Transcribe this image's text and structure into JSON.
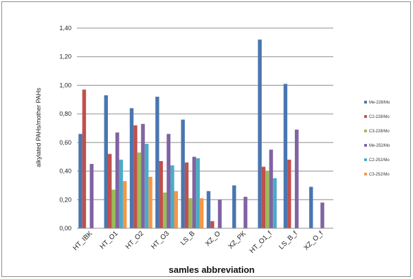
{
  "chart_data": {
    "type": "bar",
    "title": "",
    "xlabel": "samles abbreviation",
    "ylabel": "alkylated PAHs/mother PAHs",
    "ylim": [
      0,
      1.4
    ],
    "yticks": [
      "0,00",
      "0,20",
      "0,40",
      "0,60",
      "0,80",
      "1,00",
      "1,20",
      "1,40"
    ],
    "grid": true,
    "legend_position": "right",
    "categories": [
      "HT_IBK",
      "HT_O1",
      "HT_O2",
      "HT_O3",
      "LS_B",
      "XZ_O",
      "XZ_PK",
      "HT_O1_f",
      "LS_B_f",
      "XZ_O_f"
    ],
    "series": [
      {
        "name": "Me-228/Mo",
        "color": "#4a76b0",
        "values": [
          0.66,
          0.93,
          0.84,
          0.92,
          0.76,
          0.26,
          0.3,
          1.32,
          1.01,
          0.29
        ]
      },
      {
        "name": "C2-228/Mo",
        "color": "#c0504d",
        "values": [
          0.97,
          0.52,
          0.72,
          0.47,
          0.46,
          0.05,
          null,
          0.43,
          0.48,
          null
        ]
      },
      {
        "name": "C3-228/Mo",
        "color": "#9bbb59",
        "values": [
          null,
          0.27,
          0.53,
          0.25,
          0.21,
          null,
          null,
          0.4,
          null,
          null
        ]
      },
      {
        "name": "Me-252/Mo",
        "color": "#8064a2",
        "values": [
          0.45,
          0.67,
          0.73,
          0.66,
          0.5,
          0.2,
          0.22,
          0.55,
          0.69,
          0.18
        ]
      },
      {
        "name": "C2-252/Mo",
        "color": "#4bacc6",
        "values": [
          null,
          0.48,
          0.59,
          0.44,
          0.49,
          null,
          null,
          0.35,
          null,
          null
        ]
      },
      {
        "name": "C3-252/Mo",
        "color": "#f79646",
        "values": [
          null,
          0.33,
          0.36,
          0.26,
          0.21,
          null,
          null,
          null,
          null,
          null
        ]
      }
    ]
  }
}
